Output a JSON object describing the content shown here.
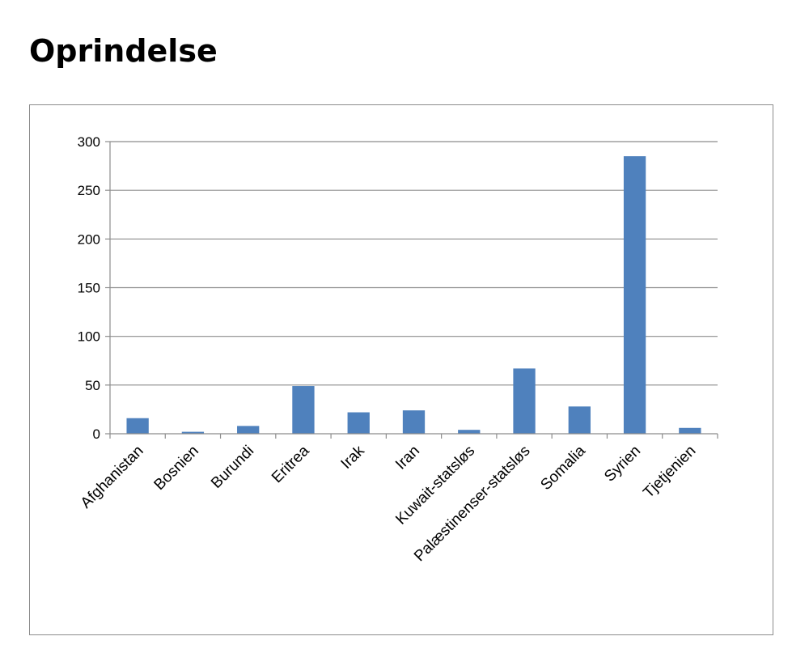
{
  "title": "Oprindelse",
  "chart_data": {
    "type": "bar",
    "title": "",
    "xlabel": "",
    "ylabel": "",
    "categories": [
      "Afghanistan",
      "Bosnien",
      "Burundi",
      "Eritrea",
      "Irak",
      "Iran",
      "Kuwait-statsløs",
      "Palæstinenser-statsløs",
      "Somalia",
      "Syrien",
      "Tjetjenien"
    ],
    "values": [
      16,
      2,
      8,
      49,
      22,
      24,
      4,
      67,
      28,
      285,
      6
    ],
    "ylim": [
      0,
      300
    ],
    "yticks": [
      0,
      50,
      100,
      150,
      200,
      250,
      300
    ],
    "grid": true,
    "legend": "none",
    "bar_color": "#4f81bd",
    "grid_color": "#8c8c8c",
    "axis_color": "#8c8c8c"
  }
}
